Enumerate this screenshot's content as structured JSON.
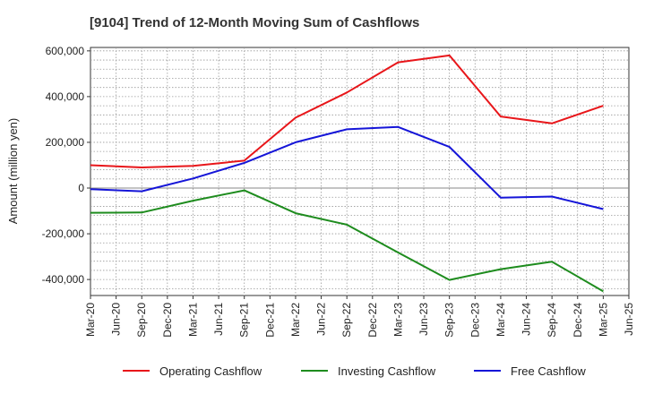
{
  "chart_data": {
    "type": "line",
    "title": "[9104]  Trend of 12-Month Moving Sum of Cashflows",
    "xlabel": "",
    "ylabel": "Amount (million yen)",
    "categories": [
      "Mar-20",
      "Jun-20",
      "Sep-20",
      "Dec-20",
      "Mar-21",
      "Jun-21",
      "Sep-21",
      "Dec-21",
      "Mar-22",
      "Jun-22",
      "Sep-22",
      "Dec-22",
      "Mar-23",
      "Jun-23",
      "Sep-23",
      "Dec-23",
      "Mar-24",
      "Jun-24",
      "Sep-24",
      "Dec-24",
      "Mar-25",
      "Jun-25"
    ],
    "ylim": [
      -470000,
      615000
    ],
    "yticks": [
      -400000,
      -200000,
      0,
      200000,
      400000,
      600000
    ],
    "ytick_labels": [
      "-400,000",
      "-200,000",
      "0",
      "200,000",
      "400,000",
      "600,000"
    ],
    "grid": true,
    "legend_position": "bottom",
    "series": [
      {
        "name": "Operating Cashflow",
        "color": "#e8161a",
        "points": [
          [
            "Mar-20",
            100000
          ],
          [
            "Sep-20",
            90000
          ],
          [
            "Mar-21",
            97000
          ],
          [
            "Sep-21",
            120000
          ],
          [
            "Mar-22",
            308000
          ],
          [
            "Sep-22",
            418000
          ],
          [
            "Mar-23",
            550000
          ],
          [
            "Sep-23",
            580000
          ],
          [
            "Mar-24",
            313000
          ],
          [
            "Sep-24",
            283000
          ],
          [
            "Mar-25",
            360000
          ]
        ]
      },
      {
        "name": "Investing Cashflow",
        "color": "#1e8c1e",
        "points": [
          [
            "Mar-20",
            -108000
          ],
          [
            "Sep-20",
            -107000
          ],
          [
            "Mar-21",
            -55000
          ],
          [
            "Sep-21",
            -10000
          ],
          [
            "Mar-22",
            -110000
          ],
          [
            "Sep-22",
            -160000
          ],
          [
            "Mar-23",
            -282000
          ],
          [
            "Sep-23",
            -402000
          ],
          [
            "Mar-24",
            -355000
          ],
          [
            "Sep-24",
            -322000
          ],
          [
            "Mar-25",
            -452000
          ]
        ]
      },
      {
        "name": "Free Cashflow",
        "color": "#1515d8",
        "points": [
          [
            "Mar-20",
            -5000
          ],
          [
            "Sep-20",
            -14000
          ],
          [
            "Mar-21",
            42000
          ],
          [
            "Sep-21",
            110000
          ],
          [
            "Mar-22",
            200000
          ],
          [
            "Sep-22",
            257000
          ],
          [
            "Mar-23",
            267000
          ],
          [
            "Sep-23",
            180000
          ],
          [
            "Mar-24",
            -42000
          ],
          [
            "Sep-24",
            -37000
          ],
          [
            "Mar-25",
            -92000
          ]
        ]
      }
    ]
  }
}
